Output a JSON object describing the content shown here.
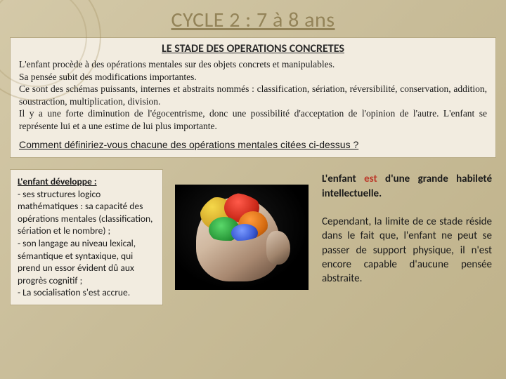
{
  "title": "CYCLE 2 : 7 à 8 ans",
  "subtitle": "LE STADE DES OPERATIONS CONCRETES",
  "paragraphs": [
    "L'enfant procède à des opérations mentales sur des objets concrets et manipulables.",
    "Sa pensée subit des modifications importantes.",
    "Ce sont des schémas puissants, internes et abstraits nommés : classification, sériation, réversibilité, conservation, addition, soustraction, multiplication, division.",
    "Il y a une forte diminution de l'égocentrisme, donc une possibilité d'acceptation de l'opinion de l'autre.  L'enfant  se représente lui et a une estime de lui plus importante."
  ],
  "question": "Comment définiriez-vous chacune des opérations mentales citées ci-dessus ?",
  "left": {
    "lead": "L'enfant développe :",
    "items": [
      "- ses structures logico mathématiques : sa capacité des opérations mentales (classification, sériation et le nombre) ;",
      "- son langage au niveau lexical, sémantique et syntaxique, qui prend un essor évident dû aux progrès cognitif ;",
      "- La socialisation s'est accrue."
    ]
  },
  "right": {
    "p1_pre": "L'enfant ",
    "p1_accent": "est",
    "p1_post": " d'une grande habileté intellectuelle.",
    "p2": "Cependant, la limite de ce stade réside dans le fait que, l'enfant ne peut se passer de support physique, il n'est encore capable d'aucune pensée abstraite."
  },
  "colors": {
    "title": "#938358",
    "box_bg": "#f2ece0",
    "box_border": "#b8ab85",
    "accent": "#bc3a2a",
    "bg_start": "#d4c9a8",
    "bg_end": "#bfb28a"
  }
}
